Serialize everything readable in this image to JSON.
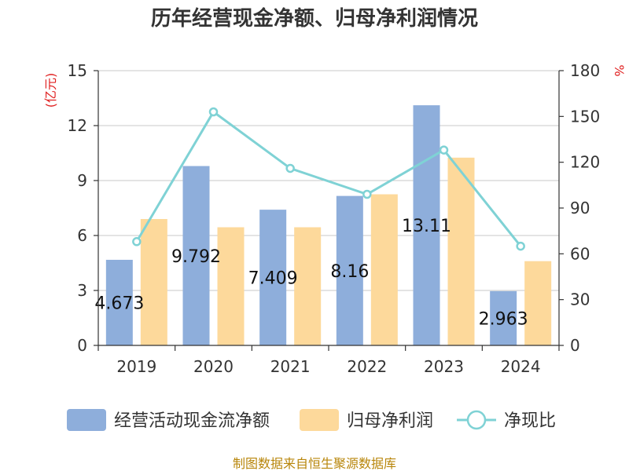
{
  "colors": {
    "cash": "#8eaedb",
    "profit": "#fdd99b",
    "ratio": "#7fd2d5",
    "unit": "#e02020",
    "source": "#b8860b"
  },
  "chart_data": {
    "type": "bar",
    "title": "历年经营现金净额、归母净利润情况",
    "categories": [
      "2019",
      "2020",
      "2021",
      "2022",
      "2023",
      "2024"
    ],
    "series": [
      {
        "name": "经营活动现金流净额",
        "type": "bar",
        "axis": "left",
        "values": [
          4.673,
          9.792,
          7.409,
          8.16,
          13.11,
          2.963
        ]
      },
      {
        "name": "归母净利润",
        "type": "bar",
        "axis": "left",
        "values": [
          6.9,
          6.45,
          6.45,
          8.25,
          10.25,
          4.6
        ]
      },
      {
        "name": "净现比",
        "type": "line",
        "axis": "right",
        "values": [
          68,
          153,
          116,
          99,
          128,
          65
        ]
      }
    ],
    "data_labels": [
      "4.673",
      "9.792",
      "7.409",
      "8.16",
      "13.11",
      "2.963"
    ],
    "left_axis": {
      "unit": "(亿元)",
      "min": 0,
      "max": 15,
      "ticks": [
        "0",
        "3",
        "6",
        "9",
        "12",
        "15"
      ]
    },
    "right_axis": {
      "unit": "%",
      "min": 0,
      "max": 180,
      "ticks": [
        "0",
        "30",
        "60",
        "90",
        "120",
        "150",
        "180"
      ]
    },
    "grid": true,
    "legend_position": "bottom"
  },
  "source": "制图数据来自恒生聚源数据库"
}
